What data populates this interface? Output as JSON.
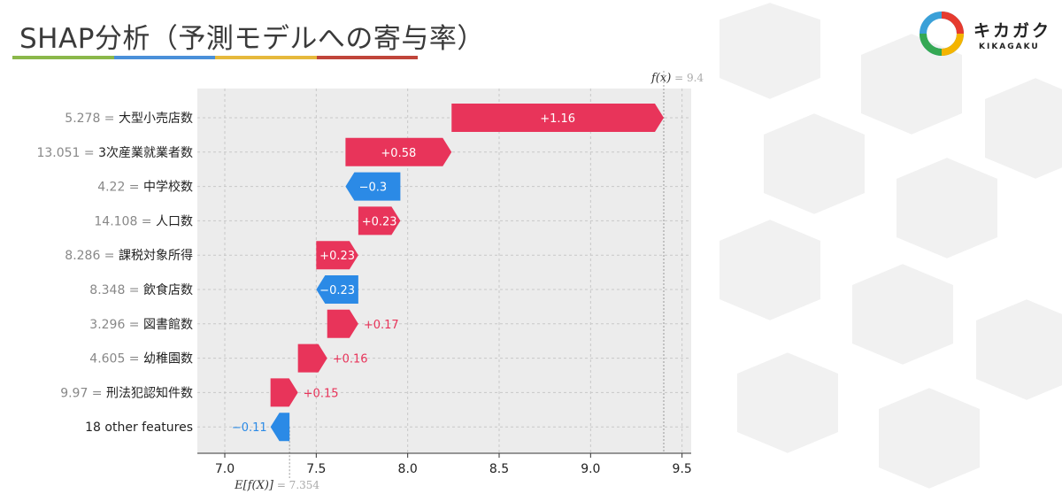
{
  "slide": {
    "title": "SHAP分析（予測モデルへの寄与率）",
    "title_bar_colors": [
      "#8bb84a",
      "#4a90d9",
      "#e6b93c",
      "#c0453a"
    ]
  },
  "brand": {
    "name": "キカガク",
    "sub": "KIKAGAKU",
    "logo_icon": "kikagaku-ring-logo-icon",
    "logo_colors": [
      "#3aa0d8",
      "#e63a2e",
      "#f4b400",
      "#34a853"
    ]
  },
  "chart_data": {
    "type": "waterfall",
    "base_value": 7.354,
    "final_value": 9.4,
    "base_label": "E[f(X)]",
    "base_value_text": "= 7.354",
    "final_label": "f(x)",
    "final_value_text": "= 9.4",
    "xlim": [
      6.85,
      9.55
    ],
    "x_ticks": [
      7.0,
      7.5,
      8.0,
      8.5,
      9.0,
      9.5
    ],
    "x_tick_labels": [
      "7.0",
      "7.5",
      "8.0",
      "8.5",
      "9.0",
      "9.5"
    ],
    "grid": true,
    "positive_color": "#e8345a",
    "negative_color": "#2b8ae6",
    "features": [
      {
        "value_text": "5.278 =",
        "name": "大型小売店数",
        "start": 8.24,
        "end": 9.4,
        "label": "+1.16"
      },
      {
        "value_text": "13.051 =",
        "name": "3次産業就業者数",
        "start": 7.66,
        "end": 8.24,
        "label": "+0.58"
      },
      {
        "value_text": "4.22 =",
        "name": "中学校数",
        "start": 7.96,
        "end": 7.66,
        "label": "−0.3"
      },
      {
        "value_text": "14.108 =",
        "name": "人口数",
        "start": 7.73,
        "end": 7.96,
        "label": "+0.23"
      },
      {
        "value_text": "8.286 =",
        "name": "課税対象所得",
        "start": 7.5,
        "end": 7.73,
        "label": "+0.23"
      },
      {
        "value_text": "8.348 =",
        "name": "飲食店数",
        "start": 7.73,
        "end": 7.5,
        "label": "−0.23"
      },
      {
        "value_text": "3.296 =",
        "name": "図書館数",
        "start": 7.56,
        "end": 7.73,
        "label": "+0.17"
      },
      {
        "value_text": "4.605 =",
        "name": "幼稚園数",
        "start": 7.4,
        "end": 7.56,
        "label": "+0.16"
      },
      {
        "value_text": "9.97 =",
        "name": "刑法犯認知件数",
        "start": 7.25,
        "end": 7.4,
        "label": "+0.15"
      },
      {
        "value_text": "",
        "name": "18 other features",
        "start": 7.354,
        "end": 7.25,
        "label": "−0.11"
      }
    ]
  }
}
